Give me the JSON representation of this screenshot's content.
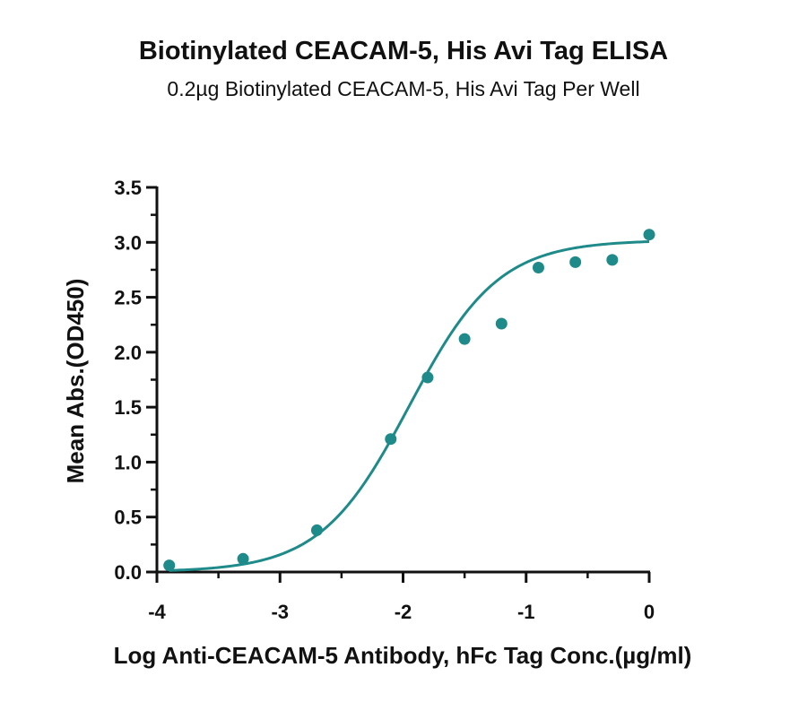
{
  "chart_data": {
    "type": "scatter",
    "title": "Biotinylated CEACAM-5, His Avi Tag ELISA",
    "subtitle": "0.2µg Biotinylated CEACAM-5, His Avi Tag Per Well",
    "xlabel": "Log Anti-CEACAM-5 Antibody, hFc Tag Conc.(µg/ml)",
    "ylabel": "Mean Abs.(OD450)",
    "xlim": [
      -4,
      0
    ],
    "ylim": [
      0,
      3.5
    ],
    "x_ticks": [
      "-4",
      "-3",
      "-2",
      "-1",
      "0"
    ],
    "y_ticks": [
      "0.0",
      "0.5",
      "1.0",
      "1.5",
      "2.0",
      "2.5",
      "3.0",
      "3.5"
    ],
    "grid": false,
    "series": [
      {
        "color": "#1f8a8a",
        "points": [
          {
            "x": -3.9,
            "y": 0.06
          },
          {
            "x": -3.3,
            "y": 0.12
          },
          {
            "x": -2.7,
            "y": 0.38
          },
          {
            "x": -2.1,
            "y": 1.21
          },
          {
            "x": -1.8,
            "y": 1.77
          },
          {
            "x": -1.5,
            "y": 2.12
          },
          {
            "x": -1.2,
            "y": 2.26
          },
          {
            "x": -0.9,
            "y": 2.77
          },
          {
            "x": -0.6,
            "y": 2.82
          },
          {
            "x": -0.3,
            "y": 2.84
          },
          {
            "x": 0.0,
            "y": 3.07
          }
        ],
        "fit_curve": {
          "model": "4PL",
          "bottom": 0.0,
          "top": 3.02,
          "log_ec50": -1.95,
          "hill_slope": 1.2
        }
      }
    ]
  }
}
